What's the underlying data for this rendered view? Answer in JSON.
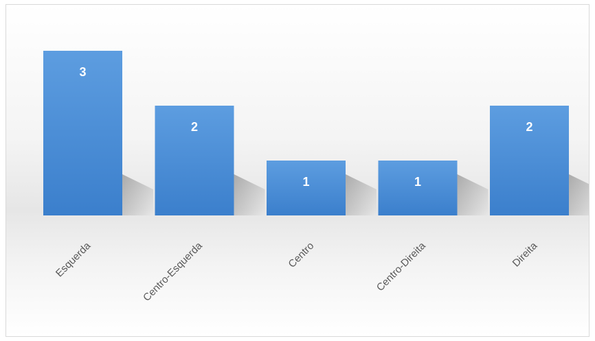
{
  "chart_data": {
    "type": "bar",
    "title": "",
    "xlabel": "",
    "ylabel": "",
    "categories": [
      "Esquerda",
      "Centro-Esquerda",
      "Centro",
      "Centro-Direita",
      "Direita"
    ],
    "values": [
      3,
      2,
      1,
      1,
      2
    ],
    "ylim": [
      0,
      3
    ],
    "grid": false,
    "legend": "none",
    "data_labels": true,
    "bar_color": "#4a90d9"
  }
}
